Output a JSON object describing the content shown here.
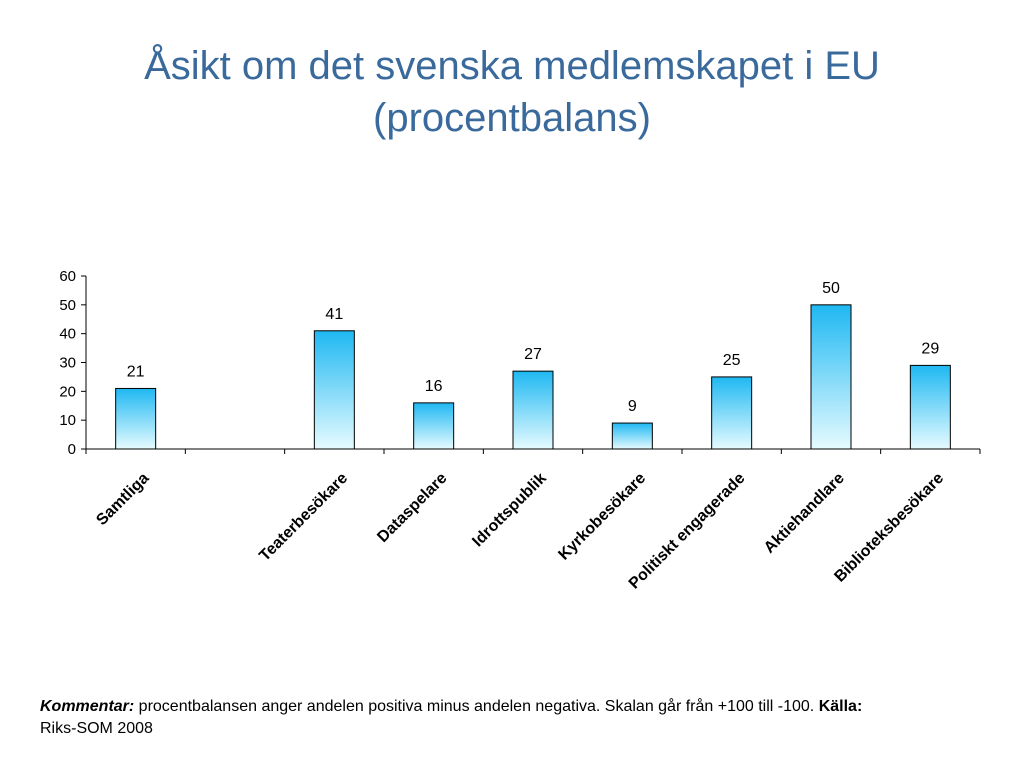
{
  "title": {
    "line1": "Åsikt om det svenska medlemskapet i EU",
    "line2": "(procentbalans)"
  },
  "chart_data": {
    "type": "bar",
    "categories": [
      "Samtliga",
      "",
      "Teaterbesökare",
      "Dataspelare",
      "Idrottspublik",
      "Kyrkobesökare",
      "Politiskt engagerade",
      "Aktiehandlare",
      "Biblioteksbesökare"
    ],
    "values": [
      21,
      null,
      41,
      16,
      27,
      9,
      25,
      50,
      29
    ],
    "data_labels": [
      "21",
      "",
      "41",
      "16",
      "27",
      "9",
      "25",
      "50",
      "29"
    ],
    "ylim": [
      0,
      60
    ],
    "yticks": [
      0,
      10,
      20,
      30,
      40,
      50,
      60
    ],
    "xlabel": "",
    "ylabel": "",
    "grid": false,
    "bar_gradient": [
      "#1fb8f2",
      "#e6fbff"
    ],
    "bar_edge_color": "#000000"
  },
  "footnote": {
    "kommentar_label": "Kommentar:",
    "kommentar_text": " procentbalansen anger andelen positiva minus andelen negativa. Skalan går från +100 till -100. ",
    "kalla_label": "Källa:",
    "kalla_text": " Riks-SOM 2008"
  }
}
